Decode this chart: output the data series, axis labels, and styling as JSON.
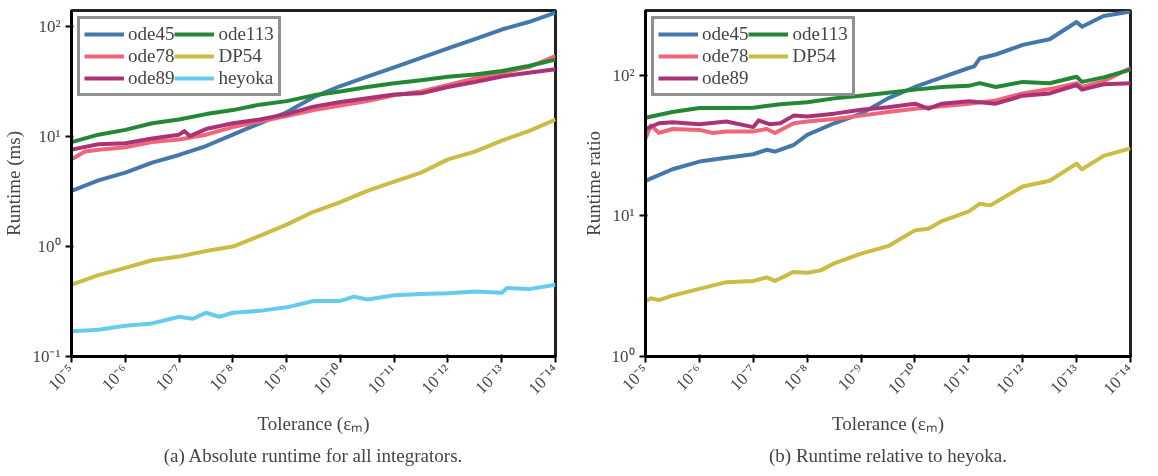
{
  "chart_data": [
    {
      "type": "line",
      "title": "(a) Absolute runtime for all integrators.",
      "xlabel": "Tolerance (εₘ)",
      "ylabel": "Runtime (ms)",
      "log": "xy",
      "legend": "top left",
      "grid": false,
      "xlim": [
        1e-05,
        1e-14
      ],
      "ylim": [
        0.1,
        140
      ],
      "xticks": [
        {
          "value": 1e-05,
          "label": "10⁻⁵"
        },
        {
          "value": 1e-06,
          "label": "10⁻⁶"
        },
        {
          "value": 1e-07,
          "label": "10⁻⁷"
        },
        {
          "value": 1e-08,
          "label": "10⁻⁸"
        },
        {
          "value": 1e-09,
          "label": "10⁻⁹"
        },
        {
          "value": 1e-10,
          "label": "10⁻¹⁰"
        },
        {
          "value": 1e-11,
          "label": "10⁻¹¹"
        },
        {
          "value": 1e-12,
          "label": "10⁻¹²"
        },
        {
          "value": 1e-13,
          "label": "10⁻¹³"
        },
        {
          "value": 1e-14,
          "label": "10⁻¹⁴"
        }
      ],
      "yticks": [
        {
          "value": 0.1,
          "label": "10⁻¹"
        },
        {
          "value": 1,
          "label": "10⁰"
        },
        {
          "value": 10,
          "label": "10¹"
        },
        {
          "value": 100,
          "label": "10²"
        }
      ],
      "x": [
        1e-05,
        3.16e-06,
        1e-06,
        3.16e-07,
        1e-07,
        3.16e-08,
        1e-08,
        3.16e-09,
        1e-09,
        3.16e-10,
        1e-10,
        3.16e-11,
        1e-11,
        3.16e-12,
        1e-12,
        3.16e-13,
        1e-13,
        3.16e-14,
        1e-14
      ],
      "series": [
        {
          "name": "ode45",
          "color": "#4477aa",
          "values": [
            3.2,
            4.0,
            4.7,
            5.8,
            6.8,
            8.2,
            10.4,
            13.2,
            16.6,
            22.8,
            28.8,
            35,
            42.6,
            52,
            63.5,
            77,
            94,
            110,
            134
          ]
        },
        {
          "name": "ode78",
          "color": "#ee6677",
          "x": [
            1e-05,
            5.62e-06,
            3.16e-06,
            1e-06,
            3.16e-07,
            1e-07,
            3.16e-08,
            1e-08,
            3.16e-09,
            1e-09,
            3.16e-10,
            1e-10,
            3.16e-11,
            1e-11,
            3.16e-12,
            1e-12,
            3.16e-13,
            1e-13,
            3.16e-14,
            1e-14
          ],
          "values": [
            6.2,
            7.3,
            7.6,
            8.0,
            8.9,
            9.4,
            10.4,
            12.2,
            13.7,
            15.4,
            17.4,
            19.1,
            21,
            23.7,
            25.7,
            29.5,
            33.8,
            38,
            42.8,
            54
          ]
        },
        {
          "name": "ode89",
          "color": "#aa3377",
          "x": [
            1e-05,
            3.16e-06,
            1e-06,
            3.16e-07,
            1e-07,
            7.94e-08,
            6.31e-08,
            3.16e-08,
            1e-08,
            3.16e-09,
            1e-09,
            3.16e-10,
            1e-10,
            3.16e-11,
            1e-11,
            3.16e-12,
            1e-12,
            3.16e-13,
            1e-13,
            3.16e-14,
            1e-14
          ],
          "values": [
            7.6,
            8.5,
            8.7,
            9.6,
            10.4,
            11.2,
            10.1,
            11.7,
            13.2,
            14.3,
            16,
            18.7,
            20.6,
            22.3,
            24.1,
            24.7,
            28.2,
            31.3,
            35.2,
            38,
            41
          ]
        },
        {
          "name": "ode113",
          "color": "#228833",
          "values": [
            8.9,
            10.4,
            11.5,
            13.2,
            14.3,
            16,
            17.4,
            19.5,
            21,
            23.7,
            25.7,
            28.2,
            30.5,
            32.5,
            35,
            36.6,
            39.5,
            43.8,
            50
          ]
        },
        {
          "name": "DP54",
          "color": "#ccbb44",
          "values": [
            0.45,
            0.55,
            0.64,
            0.75,
            0.81,
            0.91,
            1.0,
            1.25,
            1.58,
            2.07,
            2.53,
            3.2,
            3.9,
            4.7,
            6.2,
            7.3,
            9.2,
            11.2,
            14.3
          ]
        },
        {
          "name": "heyoka",
          "color": "#66ccee",
          "x": [
            1e-05,
            3.16e-06,
            1e-06,
            3.16e-07,
            1e-07,
            5.62e-08,
            3.16e-08,
            1.78e-08,
            1e-08,
            3.16e-09,
            1e-09,
            3.16e-10,
            1e-10,
            5.62e-11,
            3.16e-11,
            1e-11,
            3.16e-12,
            1e-12,
            3.16e-13,
            1e-13,
            7.94e-14,
            3.16e-14,
            1e-14
          ],
          "values": [
            0.17,
            0.175,
            0.19,
            0.2,
            0.23,
            0.22,
            0.25,
            0.23,
            0.25,
            0.26,
            0.28,
            0.32,
            0.32,
            0.35,
            0.33,
            0.36,
            0.37,
            0.375,
            0.39,
            0.38,
            0.42,
            0.41,
            0.45
          ]
        }
      ]
    },
    {
      "type": "line",
      "title": "(b) Runtime relative to heyoka.",
      "xlabel": "Tolerance (εₘ)",
      "ylabel": "Runtime ratio",
      "log": "xy",
      "legend": "top left",
      "grid": false,
      "xlim": [
        1e-05,
        1e-14
      ],
      "ylim": [
        1,
        290
      ],
      "xticks": [
        {
          "value": 1e-05,
          "label": "10⁻⁵"
        },
        {
          "value": 1e-06,
          "label": "10⁻⁶"
        },
        {
          "value": 1e-07,
          "label": "10⁻⁷"
        },
        {
          "value": 1e-08,
          "label": "10⁻⁸"
        },
        {
          "value": 1e-09,
          "label": "10⁻⁹"
        },
        {
          "value": 1e-10,
          "label": "10⁻¹⁰"
        },
        {
          "value": 1e-11,
          "label": "10⁻¹¹"
        },
        {
          "value": 1e-12,
          "label": "10⁻¹²"
        },
        {
          "value": 1e-13,
          "label": "10⁻¹³"
        },
        {
          "value": 1e-14,
          "label": "10⁻¹⁴"
        }
      ],
      "yticks": [
        {
          "value": 1,
          "label": "10⁰"
        },
        {
          "value": 10,
          "label": "10¹"
        },
        {
          "value": 100,
          "label": "10²"
        }
      ],
      "series": [
        {
          "name": "ode45",
          "color": "#4477aa",
          "x": [
            1e-05,
            3.16e-06,
            1e-06,
            3.16e-07,
            1e-07,
            5.62e-08,
            3.98e-08,
            1.78e-08,
            1e-08,
            3.16e-09,
            1e-09,
            3.16e-10,
            1e-10,
            3.16e-11,
            1e-11,
            7.94e-12,
            6.31e-12,
            3.16e-12,
            1e-12,
            3.16e-13,
            1e-13,
            7.94e-14,
            3.16e-14,
            1e-14
          ],
          "values": [
            17.8,
            21.5,
            24.4,
            26,
            27.5,
            29.6,
            28.7,
            32,
            37.8,
            45.7,
            53.5,
            68.7,
            82.8,
            97,
            113,
            116,
            132,
            141,
            165,
            181,
            240,
            222,
            265,
            285
          ]
        },
        {
          "name": "ode78",
          "color": "#ee6677",
          "x": [
            1e-05,
            7.94e-06,
            5.62e-06,
            3.16e-06,
            1e-06,
            5.62e-07,
            3.16e-07,
            1e-07,
            5.62e-08,
            3.98e-08,
            1.78e-08,
            1e-08,
            3.16e-09,
            1e-09,
            3.16e-10,
            1e-10,
            3.16e-11,
            1e-11,
            3.16e-12,
            1e-12,
            3.16e-13,
            1e-13,
            7.94e-14,
            3.16e-14,
            1e-14
          ],
          "values": [
            35.6,
            44,
            39,
            41.6,
            41,
            39,
            40,
            40,
            41.6,
            39,
            45.7,
            47,
            49,
            51.8,
            55,
            58,
            60.5,
            63,
            66.5,
            74.5,
            80,
            88,
            83,
            91,
            113
          ]
        },
        {
          "name": "ode89",
          "color": "#aa3377",
          "x": [
            1e-05,
            5.62e-06,
            3.16e-06,
            1e-06,
            3.16e-07,
            1e-07,
            7.94e-08,
            5.01e-08,
            3.16e-08,
            1.78e-08,
            1e-08,
            3.16e-09,
            1e-09,
            3.16e-10,
            1e-10,
            5.62e-11,
            3.16e-11,
            1e-11,
            3.16e-12,
            1e-12,
            3.16e-13,
            1e-13,
            7.94e-14,
            3.16e-14,
            1e-14
          ],
          "values": [
            41.6,
            45.7,
            46.5,
            45,
            47,
            42.9,
            47.9,
            45,
            45.7,
            51.8,
            51,
            53.5,
            57,
            59.4,
            63,
            58,
            63,
            65.6,
            63,
            71.8,
            74.5,
            85.5,
            79.3,
            86.5,
            88
          ]
        },
        {
          "name": "ode113",
          "color": "#228833",
          "x": [
            1e-05,
            3.16e-06,
            1e-06,
            3.16e-07,
            1e-07,
            3.16e-08,
            1e-08,
            3.16e-09,
            1e-09,
            3.16e-10,
            1e-10,
            3.16e-11,
            1e-11,
            6.31e-12,
            3.16e-12,
            1e-12,
            3.16e-13,
            1e-13,
            7.94e-14,
            3.16e-14,
            1e-14
          ],
          "values": [
            50,
            55,
            58.6,
            58.6,
            59,
            62.5,
            64.5,
            68.7,
            71.8,
            75.4,
            79.3,
            82.8,
            84.4,
            88.2,
            82.8,
            90,
            88,
            98,
            90,
            97,
            110
          ]
        },
        {
          "name": "DP54",
          "color": "#ccbb44",
          "x": [
            1e-05,
            7.94e-06,
            5.62e-06,
            3.16e-06,
            1e-06,
            3.16e-07,
            1e-07,
            5.62e-08,
            3.98e-08,
            1.78e-08,
            1e-08,
            5.62e-09,
            3.16e-09,
            1e-09,
            3.16e-10,
            1e-10,
            5.62e-11,
            3.16e-11,
            1e-11,
            6.31e-12,
            3.98e-12,
            1.78e-12,
            1e-12,
            3.16e-13,
            1e-13,
            7.94e-14,
            3.16e-14,
            1e-14
          ],
          "values": [
            2.47,
            2.6,
            2.52,
            2.71,
            3.03,
            3.38,
            3.45,
            3.66,
            3.45,
            4.0,
            3.95,
            4.1,
            4.6,
            5.4,
            6.1,
            7.9,
            8.1,
            9.2,
            10.8,
            12.2,
            11.9,
            14.3,
            16.2,
            17.8,
            23.6,
            21.5,
            26.8,
            30.3
          ]
        }
      ]
    }
  ]
}
